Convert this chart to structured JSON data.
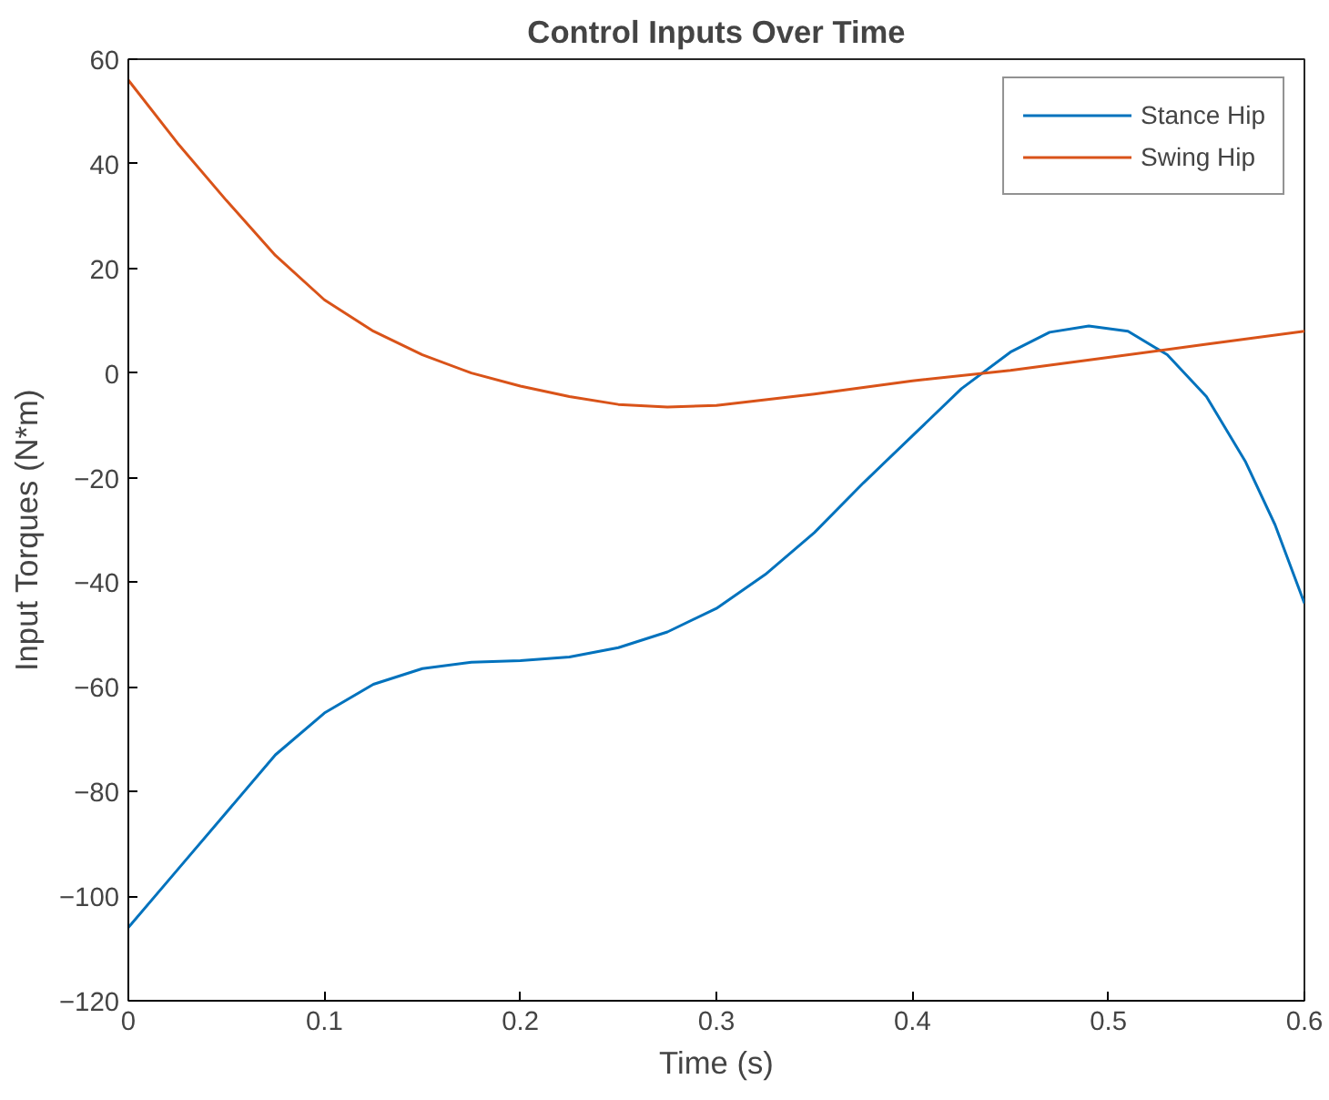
{
  "chart_data": {
    "type": "line",
    "title": "Control Inputs Over Time",
    "xlabel": "Time (s)",
    "ylabel": "Input Torques (N*m)",
    "xlim": [
      0,
      0.6
    ],
    "ylim": [
      -120,
      60
    ],
    "xticks": [
      0,
      0.1,
      0.2,
      0.3,
      0.4,
      0.5,
      0.6
    ],
    "yticks": [
      -120,
      -100,
      -80,
      -60,
      -40,
      -20,
      0,
      20,
      40,
      60
    ],
    "grid": false,
    "legend": "top right",
    "line_style": "solid",
    "marker": "none",
    "series": [
      {
        "name": "Stance Hip",
        "color": "#0072bd",
        "x": [
          0,
          0.025,
          0.05,
          0.075,
          0.1,
          0.125,
          0.15,
          0.175,
          0.2,
          0.225,
          0.25,
          0.275,
          0.3,
          0.325,
          0.35,
          0.375,
          0.4,
          0.425,
          0.45,
          0.47,
          0.49,
          0.51,
          0.53,
          0.55,
          0.57,
          0.585,
          0.6
        ],
        "values": [
          -106,
          -95,
          -84,
          -73,
          -65,
          -59.5,
          -56.5,
          -55.3,
          -55,
          -54.3,
          -52.5,
          -49.5,
          -45,
          -38.5,
          -30.5,
          -21,
          -12,
          -3,
          4,
          7.8,
          9,
          8,
          3.5,
          -4.5,
          -17,
          -29,
          -44
        ]
      },
      {
        "name": "Swing Hip",
        "color": "#d95319",
        "x": [
          0,
          0.025,
          0.05,
          0.075,
          0.1,
          0.125,
          0.15,
          0.175,
          0.2,
          0.225,
          0.25,
          0.275,
          0.3,
          0.35,
          0.4,
          0.45,
          0.5,
          0.55,
          0.6
        ],
        "values": [
          56,
          44,
          33,
          22.5,
          14,
          8,
          3.5,
          0,
          -2.5,
          -4.5,
          -6,
          -6.5,
          -6.2,
          -4,
          -1.5,
          0.5,
          3,
          5.5,
          8
        ]
      }
    ]
  }
}
